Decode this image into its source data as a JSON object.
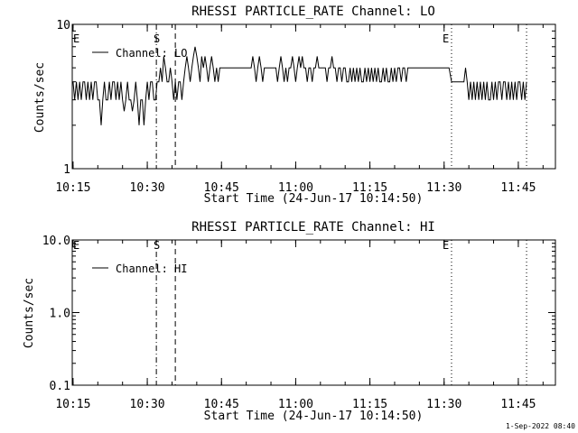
{
  "footer": {
    "timestamp": "1-Sep-2022 08:40"
  },
  "chart_data": [
    {
      "type": "line",
      "title": "RHESSI PARTICLE_RATE Channel: LO",
      "xlabel": "Start Time (24-Jun-17 10:14:50)",
      "ylabel": "Counts/sec",
      "y_scale": "log",
      "ylim": [
        1,
        10
      ],
      "y_ticks": [
        {
          "value": 1,
          "label": "1"
        },
        {
          "value": 10,
          "label": "10"
        }
      ],
      "xlim": [
        "10:14:50",
        "11:52:30"
      ],
      "x_ticks": [
        "10:15",
        "10:30",
        "10:45",
        "11:00",
        "11:15",
        "11:30",
        "11:45"
      ],
      "legend": {
        "position": "top-left",
        "entries": [
          "Channel: LO"
        ]
      },
      "markers": [
        {
          "label": "E",
          "time": "10:14:50",
          "style": "dotted"
        },
        {
          "label": "S",
          "time": "10:31:50",
          "style": "dash-dot"
        },
        {
          "label": "",
          "time": "10:35:40",
          "style": "dashed"
        },
        {
          "label": "E",
          "time": "11:31:30",
          "style": "dotted"
        },
        {
          "label": "",
          "time": "11:46:40",
          "style": "dotted"
        }
      ],
      "series": [
        {
          "name": "Channel: LO",
          "points": [
            [
              "10:15:00",
              4
            ],
            [
              "10:15:20",
              3
            ],
            [
              "10:15:40",
              4
            ],
            [
              "10:16:00",
              3
            ],
            [
              "10:16:20",
              4
            ],
            [
              "10:16:40",
              3
            ],
            [
              "10:17:00",
              4
            ],
            [
              "10:17:20",
              4
            ],
            [
              "10:17:40",
              3
            ],
            [
              "10:18:00",
              4
            ],
            [
              "10:18:20",
              3
            ],
            [
              "10:18:40",
              4
            ],
            [
              "10:19:00",
              3
            ],
            [
              "10:19:20",
              4
            ],
            [
              "10:19:40",
              4
            ],
            [
              "10:20:00",
              3
            ],
            [
              "10:20:20",
              3
            ],
            [
              "10:20:40",
              2
            ],
            [
              "10:21:00",
              3
            ],
            [
              "10:21:20",
              4
            ],
            [
              "10:21:40",
              3
            ],
            [
              "10:22:00",
              3
            ],
            [
              "10:22:20",
              4
            ],
            [
              "10:22:40",
              3
            ],
            [
              "10:23:00",
              4
            ],
            [
              "10:23:20",
              4
            ],
            [
              "10:23:40",
              3
            ],
            [
              "10:24:00",
              4
            ],
            [
              "10:24:20",
              3
            ],
            [
              "10:24:40",
              4
            ],
            [
              "10:25:00",
              3
            ],
            [
              "10:25:20",
              2.5
            ],
            [
              "10:25:40",
              3
            ],
            [
              "10:26:00",
              4
            ],
            [
              "10:26:20",
              3
            ],
            [
              "10:26:40",
              3
            ],
            [
              "10:27:00",
              2.5
            ],
            [
              "10:27:20",
              3
            ],
            [
              "10:27:40",
              4
            ],
            [
              "10:28:00",
              3
            ],
            [
              "10:28:20",
              2
            ],
            [
              "10:28:40",
              3
            ],
            [
              "10:29:00",
              3
            ],
            [
              "10:29:20",
              2
            ],
            [
              "10:29:40",
              3
            ],
            [
              "10:30:00",
              4
            ],
            [
              "10:30:20",
              3
            ],
            [
              "10:30:40",
              4
            ],
            [
              "10:31:00",
              4
            ],
            [
              "10:31:20",
              3
            ],
            [
              "10:31:40",
              3
            ],
            [
              "10:32:00",
              4
            ],
            [
              "10:32:20",
              4
            ],
            [
              "10:32:40",
              5
            ],
            [
              "10:33:00",
              4
            ],
            [
              "10:33:20",
              6
            ],
            [
              "10:33:40",
              5
            ],
            [
              "10:34:00",
              4
            ],
            [
              "10:34:20",
              4
            ],
            [
              "10:34:40",
              5
            ],
            [
              "10:35:00",
              4
            ],
            [
              "10:35:20",
              3
            ],
            [
              "10:35:40",
              4
            ],
            [
              "10:36:00",
              3
            ],
            [
              "10:36:20",
              4
            ],
            [
              "10:36:40",
              4
            ],
            [
              "10:37:00",
              3
            ],
            [
              "10:37:20",
              4
            ],
            [
              "10:37:40",
              5
            ],
            [
              "10:38:00",
              6
            ],
            [
              "10:38:20",
              5
            ],
            [
              "10:38:40",
              4
            ],
            [
              "10:39:00",
              5
            ],
            [
              "10:39:20",
              6
            ],
            [
              "10:39:40",
              7
            ],
            [
              "10:40:00",
              6
            ],
            [
              "10:40:20",
              5
            ],
            [
              "10:40:40",
              4
            ],
            [
              "10:41:00",
              6
            ],
            [
              "10:41:20",
              5
            ],
            [
              "10:41:40",
              6
            ],
            [
              "10:42:00",
              5
            ],
            [
              "10:42:20",
              4
            ],
            [
              "10:42:40",
              5
            ],
            [
              "10:43:00",
              6
            ],
            [
              "10:43:20",
              5
            ],
            [
              "10:43:40",
              4
            ],
            [
              "10:44:00",
              5
            ],
            [
              "10:44:20",
              4
            ],
            [
              "10:44:40",
              5
            ],
            [
              "10:45:00",
              5
            ],
            [
              "10:46:00",
              5
            ],
            [
              "10:47:00",
              5
            ],
            [
              "10:48:00",
              5
            ],
            [
              "10:49:00",
              5
            ],
            [
              "10:50:00",
              5
            ],
            [
              "10:51:00",
              5
            ],
            [
              "10:51:20",
              6
            ],
            [
              "10:51:40",
              5
            ],
            [
              "10:52:00",
              4
            ],
            [
              "10:52:20",
              5
            ],
            [
              "10:52:40",
              6
            ],
            [
              "10:53:00",
              5
            ],
            [
              "10:53:20",
              4
            ],
            [
              "10:53:40",
              5
            ],
            [
              "10:54:00",
              5
            ],
            [
              "10:55:00",
              5
            ],
            [
              "10:56:00",
              5
            ],
            [
              "10:56:20",
              4
            ],
            [
              "10:56:40",
              5
            ],
            [
              "10:57:00",
              6
            ],
            [
              "10:57:20",
              5
            ],
            [
              "10:57:40",
              4
            ],
            [
              "10:58:00",
              5
            ],
            [
              "10:58:20",
              4
            ],
            [
              "10:58:40",
              5
            ],
            [
              "10:59:00",
              5
            ],
            [
              "10:59:20",
              6
            ],
            [
              "10:59:40",
              5
            ],
            [
              "11:00:00",
              4
            ],
            [
              "11:00:20",
              5
            ],
            [
              "11:00:40",
              6
            ],
            [
              "11:01:00",
              5
            ],
            [
              "11:01:20",
              6
            ],
            [
              "11:01:40",
              5
            ],
            [
              "11:02:00",
              5
            ],
            [
              "11:02:20",
              4
            ],
            [
              "11:02:40",
              5
            ],
            [
              "11:03:00",
              5
            ],
            [
              "11:03:20",
              4
            ],
            [
              "11:03:40",
              5
            ],
            [
              "11:04:00",
              5
            ],
            [
              "11:04:20",
              6
            ],
            [
              "11:04:40",
              5
            ],
            [
              "11:05:00",
              5
            ],
            [
              "11:06:00",
              5
            ],
            [
              "11:06:20",
              4
            ],
            [
              "11:06:40",
              5
            ],
            [
              "11:07:00",
              5
            ],
            [
              "11:07:20",
              6
            ],
            [
              "11:07:40",
              5
            ],
            [
              "11:08:00",
              5
            ],
            [
              "11:08:20",
              4
            ],
            [
              "11:08:40",
              5
            ],
            [
              "11:09:00",
              5
            ],
            [
              "11:09:20",
              4
            ],
            [
              "11:09:40",
              5
            ],
            [
              "11:10:00",
              5
            ],
            [
              "11:10:20",
              4
            ],
            [
              "11:10:40",
              4
            ],
            [
              "11:11:00",
              5
            ],
            [
              "11:11:20",
              4
            ],
            [
              "11:11:40",
              5
            ],
            [
              "11:12:00",
              4
            ],
            [
              "11:12:20",
              5
            ],
            [
              "11:12:40",
              4
            ],
            [
              "11:13:00",
              5
            ],
            [
              "11:13:20",
              4
            ],
            [
              "11:13:40",
              4
            ],
            [
              "11:14:00",
              5
            ],
            [
              "11:14:20",
              4
            ],
            [
              "11:14:40",
              5
            ],
            [
              "11:15:00",
              4
            ],
            [
              "11:15:20",
              5
            ],
            [
              "11:15:40",
              4
            ],
            [
              "11:16:00",
              5
            ],
            [
              "11:16:20",
              4
            ],
            [
              "11:16:40",
              5
            ],
            [
              "11:17:00",
              4
            ],
            [
              "11:17:20",
              4
            ],
            [
              "11:17:40",
              5
            ],
            [
              "11:18:00",
              4
            ],
            [
              "11:18:20",
              5
            ],
            [
              "11:18:40",
              4
            ],
            [
              "11:19:00",
              4
            ],
            [
              "11:19:20",
              5
            ],
            [
              "11:19:40",
              4
            ],
            [
              "11:20:00",
              5
            ],
            [
              "11:20:20",
              4
            ],
            [
              "11:20:40",
              5
            ],
            [
              "11:21:00",
              5
            ],
            [
              "11:21:20",
              4
            ],
            [
              "11:21:40",
              5
            ],
            [
              "11:22:00",
              5
            ],
            [
              "11:22:20",
              4
            ],
            [
              "11:22:40",
              5
            ],
            [
              "11:23:00",
              5
            ],
            [
              "11:24:00",
              5
            ],
            [
              "11:25:00",
              5
            ],
            [
              "11:26:00",
              5
            ],
            [
              "11:27:00",
              5
            ],
            [
              "11:28:00",
              5
            ],
            [
              "11:29:00",
              5
            ],
            [
              "11:30:00",
              5
            ],
            [
              "11:31:00",
              5
            ],
            [
              "11:31:30",
              4
            ],
            [
              "11:32:00",
              4
            ],
            [
              "11:33:00",
              4
            ],
            [
              "11:34:00",
              4
            ],
            [
              "11:34:20",
              5
            ],
            [
              "11:34:40",
              4
            ],
            [
              "11:35:00",
              3
            ],
            [
              "11:35:20",
              4
            ],
            [
              "11:35:40",
              3
            ],
            [
              "11:36:00",
              4
            ],
            [
              "11:36:20",
              3
            ],
            [
              "11:36:40",
              4
            ],
            [
              "11:37:00",
              3
            ],
            [
              "11:37:20",
              4
            ],
            [
              "11:37:40",
              3
            ],
            [
              "11:38:00",
              4
            ],
            [
              "11:38:20",
              3
            ],
            [
              "11:38:40",
              4
            ],
            [
              "11:39:00",
              3
            ],
            [
              "11:39:20",
              3
            ],
            [
              "11:39:40",
              4
            ],
            [
              "11:40:00",
              3
            ],
            [
              "11:40:20",
              4
            ],
            [
              "11:40:40",
              3
            ],
            [
              "11:41:00",
              4
            ],
            [
              "11:41:20",
              4
            ],
            [
              "11:41:40",
              3
            ],
            [
              "11:42:00",
              4
            ],
            [
              "11:42:20",
              4
            ],
            [
              "11:42:40",
              3
            ],
            [
              "11:43:00",
              4
            ],
            [
              "11:43:20",
              3
            ],
            [
              "11:43:40",
              4
            ],
            [
              "11:44:00",
              3
            ],
            [
              "11:44:20",
              4
            ],
            [
              "11:44:40",
              3
            ],
            [
              "11:45:00",
              4
            ],
            [
              "11:45:20",
              4
            ],
            [
              "11:45:40",
              3
            ],
            [
              "11:46:00",
              4
            ],
            [
              "11:46:20",
              3
            ],
            [
              "11:46:40",
              4
            ]
          ]
        }
      ]
    },
    {
      "type": "line",
      "title": "RHESSI PARTICLE_RATE Channel: HI",
      "xlabel": "Start Time (24-Jun-17 10:14:50)",
      "ylabel": "Counts/sec",
      "y_scale": "log",
      "ylim": [
        0.1,
        10
      ],
      "y_ticks": [
        {
          "value": 0.1,
          "label": "0.1"
        },
        {
          "value": 1,
          "label": "1.0"
        },
        {
          "value": 10,
          "label": "10.0"
        }
      ],
      "xlim": [
        "10:14:50",
        "11:52:30"
      ],
      "x_ticks": [
        "10:15",
        "10:30",
        "10:45",
        "11:00",
        "11:15",
        "11:30",
        "11:45"
      ],
      "legend": {
        "position": "top-left",
        "entries": [
          "Channel: HI"
        ]
      },
      "markers": [
        {
          "label": "E",
          "time": "10:14:50",
          "style": "dotted"
        },
        {
          "label": "S",
          "time": "10:31:50",
          "style": "dash-dot"
        },
        {
          "label": "",
          "time": "10:35:40",
          "style": "dashed"
        },
        {
          "label": "E",
          "time": "11:31:30",
          "style": "dotted"
        },
        {
          "label": "",
          "time": "11:46:40",
          "style": "dotted"
        }
      ],
      "series": [
        {
          "name": "Channel: HI",
          "points": []
        }
      ]
    }
  ]
}
